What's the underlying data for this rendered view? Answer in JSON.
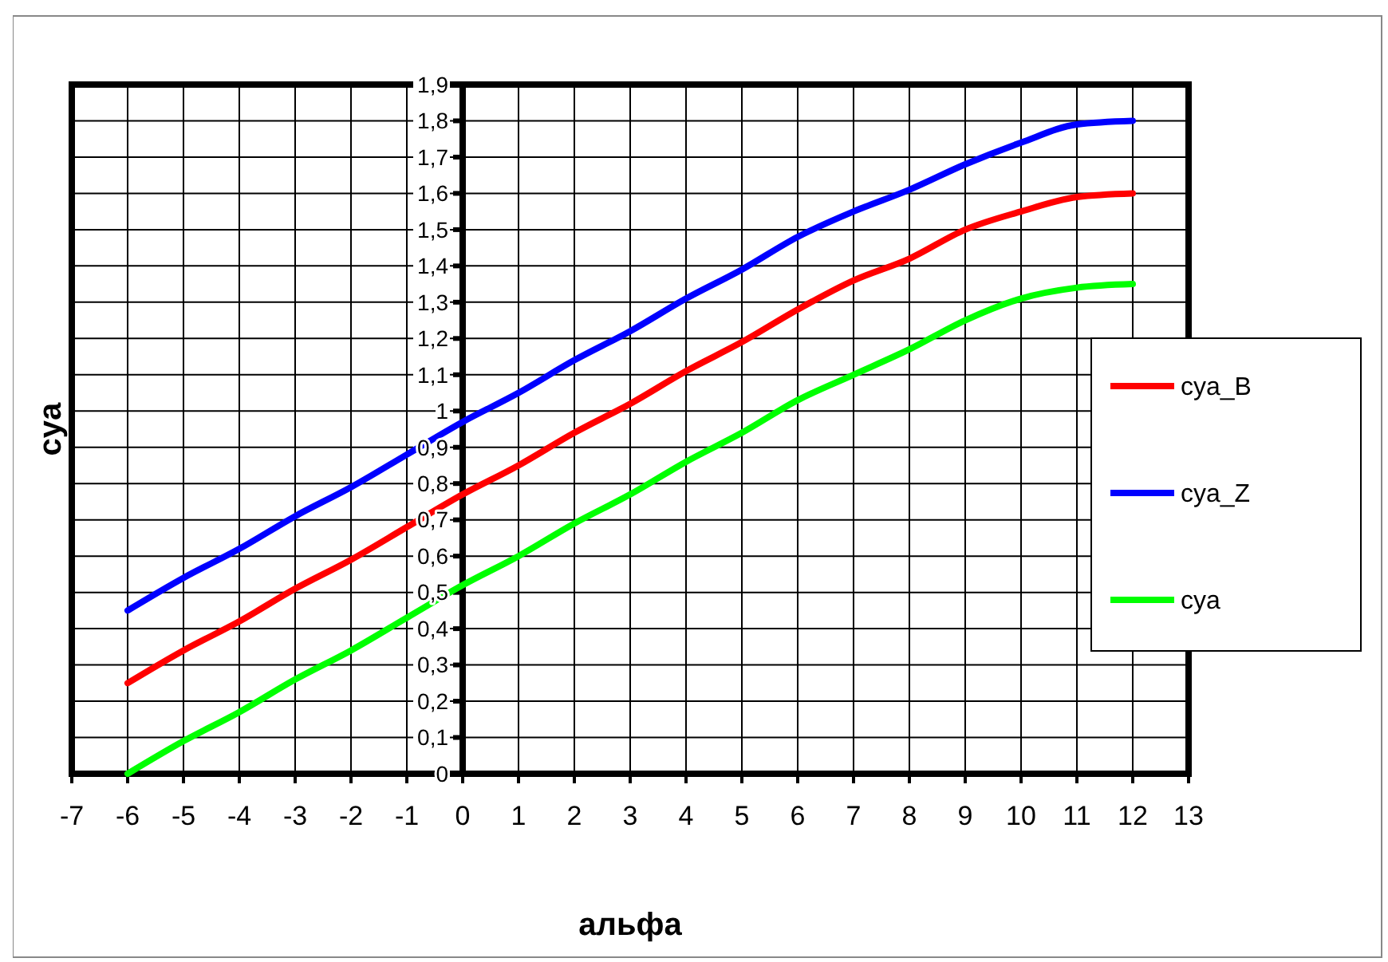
{
  "chart_data": {
    "type": "line",
    "xlabel": "альфа",
    "ylabel": "cya",
    "x": [
      -6,
      -5,
      -4,
      -3,
      -2,
      -1,
      0,
      1,
      2,
      3,
      4,
      5,
      6,
      7,
      8,
      9,
      10,
      11,
      12
    ],
    "series": [
      {
        "name": "cya_B",
        "color": "#ff0000",
        "values": [
          0.25,
          0.34,
          0.42,
          0.51,
          0.59,
          0.68,
          0.77,
          0.85,
          0.94,
          1.02,
          1.11,
          1.19,
          1.28,
          1.36,
          1.42,
          1.5,
          1.55,
          1.59,
          1.6
        ]
      },
      {
        "name": "cya_Z",
        "color": "#0000ff",
        "values": [
          0.45,
          0.54,
          0.62,
          0.71,
          0.79,
          0.88,
          0.97,
          1.05,
          1.14,
          1.22,
          1.31,
          1.39,
          1.48,
          1.55,
          1.61,
          1.68,
          1.74,
          1.79,
          1.8
        ]
      },
      {
        "name": "cya",
        "color": "#00ff00",
        "values": [
          0,
          0.09,
          0.17,
          0.26,
          0.34,
          0.43,
          0.52,
          0.6,
          0.69,
          0.77,
          0.86,
          0.94,
          1.03,
          1.1,
          1.17,
          1.25,
          1.31,
          1.34,
          1.35
        ]
      }
    ],
    "xlim": [
      -7,
      13
    ],
    "xticks": [
      -7,
      -6,
      -5,
      -4,
      -3,
      -2,
      -1,
      0,
      1,
      2,
      3,
      4,
      5,
      6,
      7,
      8,
      9,
      10,
      11,
      12,
      13
    ],
    "ylim": [
      0,
      1.9
    ],
    "yticks": [
      0,
      {
        "value": 0.1,
        "label": "0,1"
      },
      {
        "value": 0.2,
        "label": "0,2"
      },
      {
        "value": 0.3,
        "label": "0,3"
      },
      {
        "value": 0.4,
        "label": "0,4"
      },
      {
        "value": 0.5,
        "label": "0,5"
      },
      {
        "value": 0.6,
        "label": "0,6"
      },
      {
        "value": 0.7,
        "label": "0,7"
      },
      {
        "value": 0.8,
        "label": "0,8"
      },
      {
        "value": 0.9,
        "label": "0,9"
      },
      1,
      {
        "value": 1.1,
        "label": "1,1"
      },
      {
        "value": 1.2,
        "label": "1,2"
      },
      {
        "value": 1.3,
        "label": "1,3"
      },
      {
        "value": 1.4,
        "label": "1,4"
      },
      {
        "value": 1.5,
        "label": "1,5"
      },
      {
        "value": 1.6,
        "label": "1,6"
      },
      {
        "value": 1.7,
        "label": "1,7"
      },
      {
        "value": 1.8,
        "label": "1,8"
      },
      {
        "value": 1.9,
        "label": "1,9"
      }
    ],
    "grid": true,
    "legend": "right",
    "marker": "none",
    "line_style": "solid"
  }
}
